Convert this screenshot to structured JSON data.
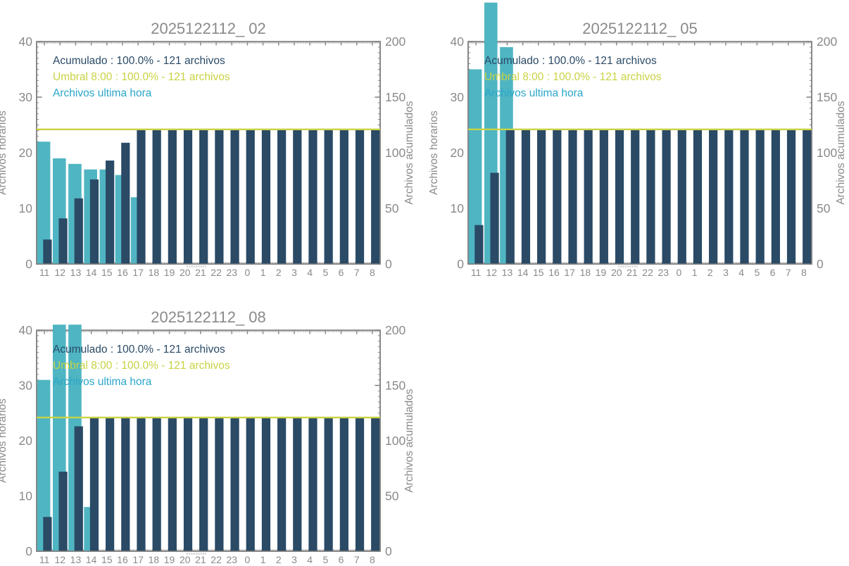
{
  "page": {
    "background": "#ffffff"
  },
  "colors": {
    "background": "#ffffff",
    "bar_hourly": "#4fb5c2",
    "bar_accumulated": "#2a4a66",
    "threshold": "#c9d243",
    "legend_hourly_text": "#2ba6c9",
    "text_gray": "#8a8a8a",
    "axis_line": "#7e7e7e"
  },
  "chart_data": [
    {
      "type": "bar",
      "title": "2025122112_ 02",
      "xlabel": "",
      "ylabel_left": "Archivos horarios",
      "ylabel_right": "Archivos acumulados",
      "ylim_left": [
        0,
        40
      ],
      "ylim_right": [
        0,
        200
      ],
      "yticks_left": [
        0,
        10,
        20,
        30,
        40
      ],
      "yticks_right": [
        0,
        50,
        100,
        150,
        200
      ],
      "grid": false,
      "legend_position": "top-left-inside",
      "categories": [
        "11",
        "12",
        "13",
        "14",
        "15",
        "16",
        "17",
        "18",
        "19",
        "20",
        "21",
        "22",
        "23",
        "0",
        "1",
        "2",
        "3",
        "4",
        "5",
        "6",
        "7",
        "8"
      ],
      "series": [
        {
          "name": "Archivos ultima hora",
          "axis": "left",
          "values": [
            22,
            19,
            18,
            17,
            17,
            16,
            12,
            0,
            0,
            0,
            0,
            0,
            0,
            0,
            0,
            0,
            0,
            0,
            0,
            0,
            0,
            0
          ]
        },
        {
          "name": "Acumulado",
          "axis": "right",
          "values": [
            22,
            41,
            59,
            76,
            93,
            109,
            121,
            121,
            121,
            121,
            121,
            121,
            121,
            121,
            121,
            121,
            121,
            121,
            121,
            121,
            121,
            121
          ]
        }
      ],
      "threshold": {
        "name": "Umbral 8:00",
        "value": 121,
        "axis": "right"
      },
      "legend": [
        {
          "text": "Acumulado : 100.0% - 121 archivos",
          "color": "bar_accumulated"
        },
        {
          "text": "Umbral 8:00 : 100.0% - 121 archivos",
          "color": "threshold"
        },
        {
          "text": "Archivos ultima hora",
          "color": "legend_hourly_text"
        }
      ]
    },
    {
      "type": "bar",
      "title": "2025122112_ 05",
      "xlabel": "",
      "ylabel_left": "Archivos horarios",
      "ylabel_right": "Archivos acumulados",
      "ylim_left": [
        0,
        40
      ],
      "ylim_right": [
        0,
        200
      ],
      "yticks_left": [
        0,
        10,
        20,
        30,
        40
      ],
      "yticks_right": [
        0,
        50,
        100,
        150,
        200
      ],
      "grid": false,
      "legend_position": "top-left-inside",
      "categories": [
        "11",
        "12",
        "13",
        "14",
        "15",
        "16",
        "17",
        "18",
        "19",
        "20",
        "21",
        "22",
        "23",
        "0",
        "1",
        "2",
        "3",
        "4",
        "5",
        "6",
        "7",
        "8"
      ],
      "series": [
        {
          "name": "Archivos ultima hora",
          "axis": "left",
          "values": [
            35,
            47,
            39,
            0,
            0,
            0,
            0,
            0,
            0,
            0,
            0,
            0,
            0,
            0,
            0,
            0,
            0,
            0,
            0,
            0,
            0,
            0
          ]
        },
        {
          "name": "Acumulado",
          "axis": "right",
          "values": [
            35,
            82,
            121,
            121,
            121,
            121,
            121,
            121,
            121,
            121,
            121,
            121,
            121,
            121,
            121,
            121,
            121,
            121,
            121,
            121,
            121,
            121
          ]
        }
      ],
      "threshold": {
        "name": "Umbral 8:00",
        "value": 121,
        "axis": "right"
      },
      "legend": [
        {
          "text": "Acumulado : 100.0% - 121 archivos",
          "color": "bar_accumulated"
        },
        {
          "text": "Umbral 8:00 : 100.0% - 121 archivos",
          "color": "threshold"
        },
        {
          "text": "Archivos ultima hora",
          "color": "legend_hourly_text"
        }
      ]
    },
    {
      "type": "bar",
      "title": "2025122112_ 08",
      "xlabel": "",
      "ylabel_left": "Archivos horarios",
      "ylabel_right": "Archivos acumulados",
      "ylim_left": [
        0,
        40
      ],
      "ylim_right": [
        0,
        200
      ],
      "yticks_left": [
        0,
        10,
        20,
        30,
        40
      ],
      "yticks_right": [
        0,
        50,
        100,
        150,
        200
      ],
      "grid": false,
      "legend_position": "top-left-inside",
      "categories": [
        "11",
        "12",
        "13",
        "14",
        "15",
        "16",
        "17",
        "18",
        "19",
        "20",
        "21",
        "22",
        "23",
        "0",
        "1",
        "2",
        "3",
        "4",
        "5",
        "6",
        "7",
        "8"
      ],
      "series": [
        {
          "name": "Archivos ultima hora",
          "axis": "left",
          "values": [
            31,
            41,
            41,
            8,
            0,
            0,
            0,
            0,
            0,
            0,
            0,
            0,
            0,
            0,
            0,
            0,
            0,
            0,
            0,
            0,
            0,
            0
          ]
        },
        {
          "name": "Acumulado",
          "axis": "right",
          "values": [
            31,
            72,
            113,
            121,
            121,
            121,
            121,
            121,
            121,
            121,
            121,
            121,
            121,
            121,
            121,
            121,
            121,
            121,
            121,
            121,
            121,
            121
          ]
        }
      ],
      "threshold": {
        "name": "Umbral 8:00",
        "value": 121,
        "axis": "right"
      },
      "legend": [
        {
          "text": "Acumulado : 100.0% - 121 archivos",
          "color": "bar_accumulated"
        },
        {
          "text": "Umbral 8:00 : 100.0% - 121 archivos",
          "color": "threshold"
        },
        {
          "text": "Archivos ultima hora",
          "color": "legend_hourly_text"
        }
      ]
    }
  ]
}
